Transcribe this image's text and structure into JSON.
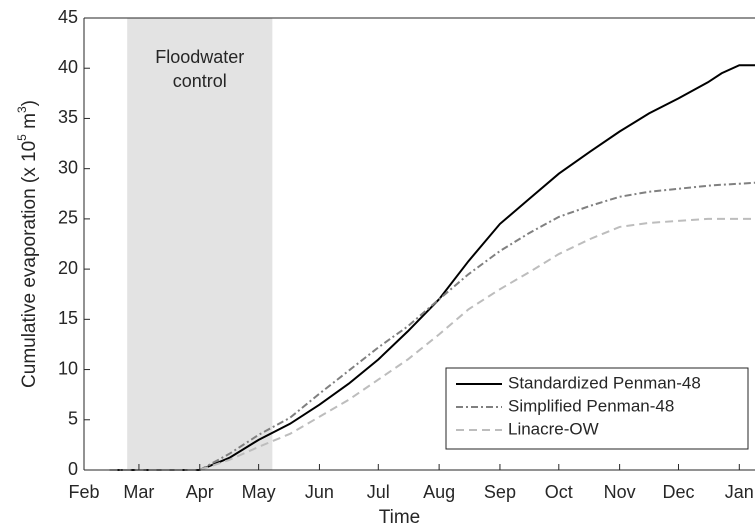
{
  "chart_data": {
    "type": "line",
    "xlabel": "Time",
    "ylabel": [
      "Cumulative evaporation (x 10",
      "5",
      " m",
      "3",
      ")"
    ],
    "annotation": [
      "Floodwater",
      "control"
    ],
    "shade": [
      22,
      96
    ],
    "x": [
      13,
      30,
      45,
      59,
      74,
      89,
      105,
      120,
      135,
      150,
      165,
      181,
      196,
      212,
      227,
      242,
      258,
      273,
      288,
      303,
      318,
      325,
      334,
      342
    ],
    "series": [
      {
        "name": "Standardized Penman-48",
        "color": "#000000",
        "style": "solid",
        "values": [
          0,
          0,
          0,
          0,
          1.2,
          3,
          4.6,
          6.5,
          8.6,
          11,
          13.8,
          17,
          20.8,
          24.5,
          27,
          29.5,
          31.7,
          33.7,
          35.5,
          37,
          38.6,
          39.5,
          40.3,
          40.3
        ]
      },
      {
        "name": "Simplified Penman-48",
        "color": "#808080",
        "style": "dashdot",
        "values": [
          0,
          0,
          0,
          0,
          1.6,
          3.5,
          5.2,
          7.6,
          9.9,
          12.2,
          14.3,
          17,
          19.5,
          21.8,
          23.6,
          25.2,
          26.3,
          27.2,
          27.7,
          28,
          28.3,
          28.4,
          28.5,
          28.6
        ]
      },
      {
        "name": "Linacre-OW",
        "color": "#bdbdbd",
        "style": "dashed",
        "values": [
          0,
          0,
          0,
          0,
          1,
          2.3,
          3.6,
          5.3,
          7,
          9,
          11,
          13.5,
          16,
          18,
          19.7,
          21.5,
          23,
          24.2,
          24.6,
          24.8,
          25,
          25,
          25,
          25
        ]
      }
    ],
    "xlim": [
      0,
      342
    ],
    "xticks": [
      {
        "value": 0,
        "label": "Feb"
      },
      {
        "value": 28,
        "label": "Mar"
      },
      {
        "value": 59,
        "label": "Apr"
      },
      {
        "value": 89,
        "label": "May"
      },
      {
        "value": 120,
        "label": "Jun"
      },
      {
        "value": 150,
        "label": "Jul"
      },
      {
        "value": 181,
        "label": "Aug"
      },
      {
        "value": 212,
        "label": "Sep"
      },
      {
        "value": 242,
        "label": "Oct"
      },
      {
        "value": 273,
        "label": "Nov"
      },
      {
        "value": 303,
        "label": "Dec"
      },
      {
        "value": 334,
        "label": "Jan"
      }
    ],
    "ylim": [
      0,
      45
    ],
    "yticks": [
      0,
      5,
      10,
      15,
      20,
      25,
      30,
      35,
      40,
      45
    ],
    "grid": false,
    "legend": "lower right"
  }
}
